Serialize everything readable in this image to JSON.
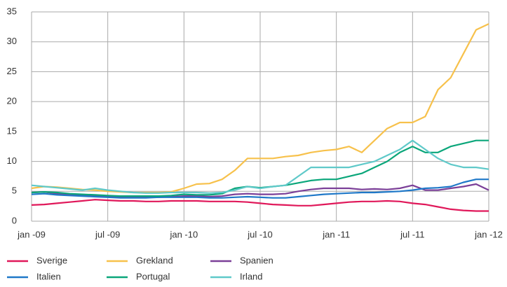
{
  "chart_data": {
    "type": "line",
    "x": [
      "2009-01",
      "2009-02",
      "2009-03",
      "2009-04",
      "2009-05",
      "2009-06",
      "2009-07",
      "2009-08",
      "2009-09",
      "2009-10",
      "2009-11",
      "2009-12",
      "2010-01",
      "2010-02",
      "2010-03",
      "2010-04",
      "2010-05",
      "2010-06",
      "2010-07",
      "2010-08",
      "2010-09",
      "2010-10",
      "2010-11",
      "2010-12",
      "2011-01",
      "2011-02",
      "2011-03",
      "2011-04",
      "2011-05",
      "2011-06",
      "2011-07",
      "2011-08",
      "2011-09",
      "2011-10",
      "2011-11",
      "2011-12",
      "2012-01"
    ],
    "xticks": [
      {
        "value": "2009-01",
        "label": "jan -09"
      },
      {
        "value": "2009-07",
        "label": "jul -09"
      },
      {
        "value": "2010-01",
        "label": "jan -10"
      },
      {
        "value": "2010-07",
        "label": "jul -10"
      },
      {
        "value": "2011-01",
        "label": "jan -11"
      },
      {
        "value": "2011-07",
        "label": "jul -11"
      },
      {
        "value": "2012-01",
        "label": "jan -12"
      }
    ],
    "ylim": [
      0,
      35
    ],
    "yticks": [
      0,
      5,
      10,
      15,
      20,
      25,
      30,
      35
    ],
    "grid": true,
    "series": [
      {
        "name": "Sverige",
        "color": "#e0185a",
        "values": [
          2.7,
          2.8,
          3.0,
          3.2,
          3.4,
          3.6,
          3.5,
          3.4,
          3.4,
          3.3,
          3.3,
          3.4,
          3.4,
          3.4,
          3.3,
          3.3,
          3.3,
          3.2,
          3.0,
          2.8,
          2.7,
          2.6,
          2.6,
          2.8,
          3.0,
          3.2,
          3.3,
          3.3,
          3.4,
          3.3,
          3.0,
          2.8,
          2.4,
          2.0,
          1.8,
          1.7,
          1.7
        ]
      },
      {
        "name": "Grekland",
        "color": "#f7c14b",
        "values": [
          5.5,
          5.8,
          5.7,
          5.5,
          5.3,
          5.2,
          5.0,
          4.9,
          4.8,
          4.8,
          4.8,
          4.9,
          5.5,
          6.2,
          6.3,
          7.0,
          8.5,
          10.5,
          10.5,
          10.5,
          10.8,
          11.0,
          11.5,
          11.8,
          12.0,
          12.5,
          11.5,
          13.5,
          15.5,
          16.5,
          16.5,
          17.5,
          22.0,
          24.0,
          28.0,
          32.0,
          33.0
        ]
      },
      {
        "name": "Spanien",
        "color": "#7b3f98",
        "values": [
          4.8,
          4.9,
          4.6,
          4.4,
          4.3,
          4.2,
          4.1,
          4.0,
          4.0,
          4.0,
          4.0,
          4.1,
          4.2,
          4.2,
          4.1,
          4.2,
          4.5,
          4.6,
          4.5,
          4.5,
          4.6,
          5.0,
          5.3,
          5.5,
          5.5,
          5.5,
          5.3,
          5.4,
          5.3,
          5.5,
          6.0,
          5.2,
          5.2,
          5.5,
          5.8,
          6.2,
          5.2
        ]
      },
      {
        "name": "Italien",
        "color": "#1f78c8",
        "values": [
          4.5,
          4.6,
          4.4,
          4.3,
          4.2,
          4.1,
          4.0,
          3.9,
          3.9,
          3.9,
          4.0,
          4.0,
          4.0,
          4.0,
          3.9,
          3.9,
          4.0,
          4.1,
          4.0,
          3.9,
          3.9,
          4.1,
          4.3,
          4.5,
          4.6,
          4.7,
          4.8,
          4.8,
          4.9,
          5.0,
          5.2,
          5.5,
          5.6,
          5.8,
          6.5,
          7.0,
          7.0
        ]
      },
      {
        "name": "Portugal",
        "color": "#0aa67a",
        "values": [
          4.8,
          4.9,
          4.8,
          4.6,
          4.5,
          4.4,
          4.3,
          4.2,
          4.2,
          4.2,
          4.2,
          4.3,
          4.5,
          4.4,
          4.4,
          4.6,
          5.5,
          5.8,
          5.6,
          5.8,
          6.0,
          6.4,
          6.8,
          7.0,
          7.0,
          7.5,
          8.0,
          9.0,
          10.0,
          11.5,
          12.5,
          11.5,
          11.5,
          12.5,
          13.0,
          13.5,
          13.5
        ]
      },
      {
        "name": "Irland",
        "color": "#5fc9c9",
        "values": [
          6.0,
          5.8,
          5.6,
          5.4,
          5.2,
          5.5,
          5.2,
          5.0,
          4.8,
          4.7,
          4.7,
          4.8,
          4.8,
          4.8,
          4.7,
          4.8,
          5.2,
          5.8,
          5.5,
          5.8,
          6.0,
          7.5,
          9.0,
          9.0,
          9.0,
          9.0,
          9.5,
          10.0,
          11.0,
          12.0,
          13.5,
          12.0,
          10.5,
          9.5,
          9.0,
          9.0,
          8.7
        ]
      }
    ]
  }
}
